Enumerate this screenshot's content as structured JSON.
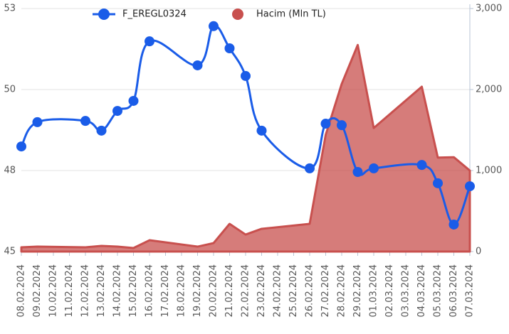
{
  "chart_data": {
    "type": "line-area",
    "x": [
      "08.02.2024",
      "09.02.2024",
      "12.02.2024",
      "13.02.2024",
      "14.02.2024",
      "15.02.2024",
      "16.02.2024",
      "19.02.2024",
      "20.02.2024",
      "21.02.2024",
      "22.02.2024",
      "23.02.2024",
      "26.02.2024",
      "27.02.2024",
      "28.02.2024",
      "29.02.2024",
      "01.03.2024",
      "04.03.2024",
      "05.03.2024",
      "06.03.2024",
      "07.03.2024"
    ],
    "xticks": [
      "08.02.2024",
      "09.02.2024",
      "10.02.2024",
      "11.02.2024",
      "12.02.2024",
      "13.02.2024",
      "14.02.2024",
      "15.02.2024",
      "16.02.2024",
      "17.02.2024",
      "18.02.2024",
      "19.02.2024",
      "20.02.2024",
      "21.02.2024",
      "22.02.2024",
      "23.02.2024",
      "24.02.2024",
      "25.02.2024",
      "26.02.2024",
      "27.02.2024",
      "28.02.2024",
      "29.02.2024",
      "01.03.2024",
      "02.03.2024",
      "03.03.2024",
      "04.03.2024",
      "05.03.2024",
      "06.03.2024",
      "07.03.2024"
    ],
    "series": [
      {
        "name": "F_EREGL0324",
        "color": "#1a5ce8",
        "axis": "y",
        "kind": "line",
        "values": [
          48.46,
          49.26,
          49.3,
          48.98,
          49.63,
          49.96,
          51.92,
          51.13,
          52.42,
          51.69,
          50.78,
          48.98,
          47.74,
          49.21,
          49.16,
          47.62,
          47.74,
          47.85,
          47.25,
          45.89,
          47.15
        ]
      },
      {
        "name": "Hacim (Mln TL)",
        "color": "#c8504e",
        "axis": "y2",
        "kind": "area",
        "values": [
          53,
          61,
          53,
          70,
          61,
          44,
          140,
          61,
          105,
          342,
          210,
          281,
          342,
          1440,
          2070,
          2550,
          1525,
          2035,
          1160,
          1165,
          1000
        ]
      }
    ],
    "ylim": [
      45,
      53
    ],
    "yticks": [
      45,
      {
        "value": 47.667,
        "label": "48"
      },
      {
        "value": 50.333,
        "label": "50"
      },
      53
    ],
    "y2lim": [
      0,
      3000
    ],
    "y2ticks": [
      0,
      {
        "value": 1000,
        "label": "1,000"
      },
      {
        "value": 2000,
        "label": "2,000"
      },
      {
        "value": 3000,
        "label": "3,000"
      }
    ],
    "grid": true
  }
}
